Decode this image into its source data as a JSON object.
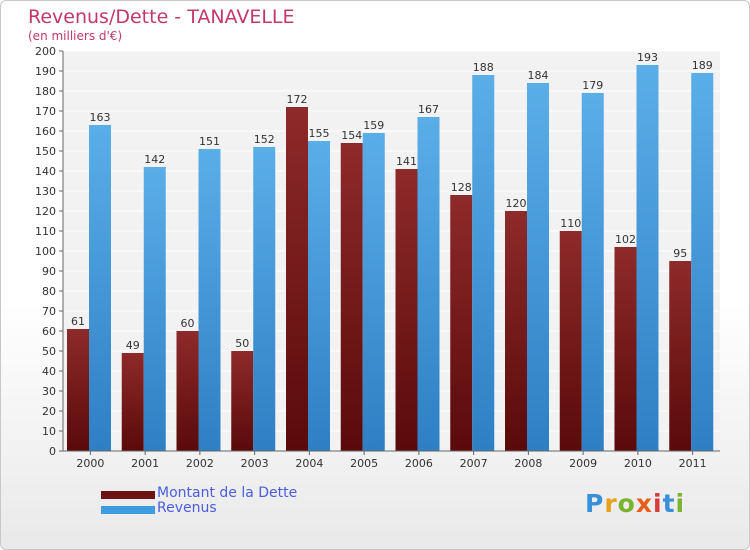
{
  "header": {
    "title": "Revenus/Dette - TANAVELLE",
    "subtitle": "(en milliers d'€)"
  },
  "colors": {
    "title": "#c2386a",
    "debt": "#7a1d1d",
    "revenue": "#3d9be0",
    "legend_text": "#4a5de0"
  },
  "logo": {
    "text": "Proxiti"
  },
  "chart_data": {
    "type": "bar",
    "categories": [
      "2000",
      "2001",
      "2002",
      "2003",
      "2004",
      "2005",
      "2006",
      "2007",
      "2008",
      "2009",
      "2010",
      "2011"
    ],
    "series": [
      {
        "name": "Montant de la Dette",
        "values": [
          61,
          49,
          60,
          50,
          172,
          154,
          141,
          128,
          120,
          110,
          102,
          95
        ]
      },
      {
        "name": "Revenus",
        "values": [
          163,
          142,
          151,
          152,
          155,
          159,
          167,
          188,
          184,
          179,
          193,
          189
        ]
      }
    ],
    "ylim": [
      0,
      200
    ],
    "ytick_step": 10,
    "grid": true,
    "legend": "bottom-left"
  }
}
